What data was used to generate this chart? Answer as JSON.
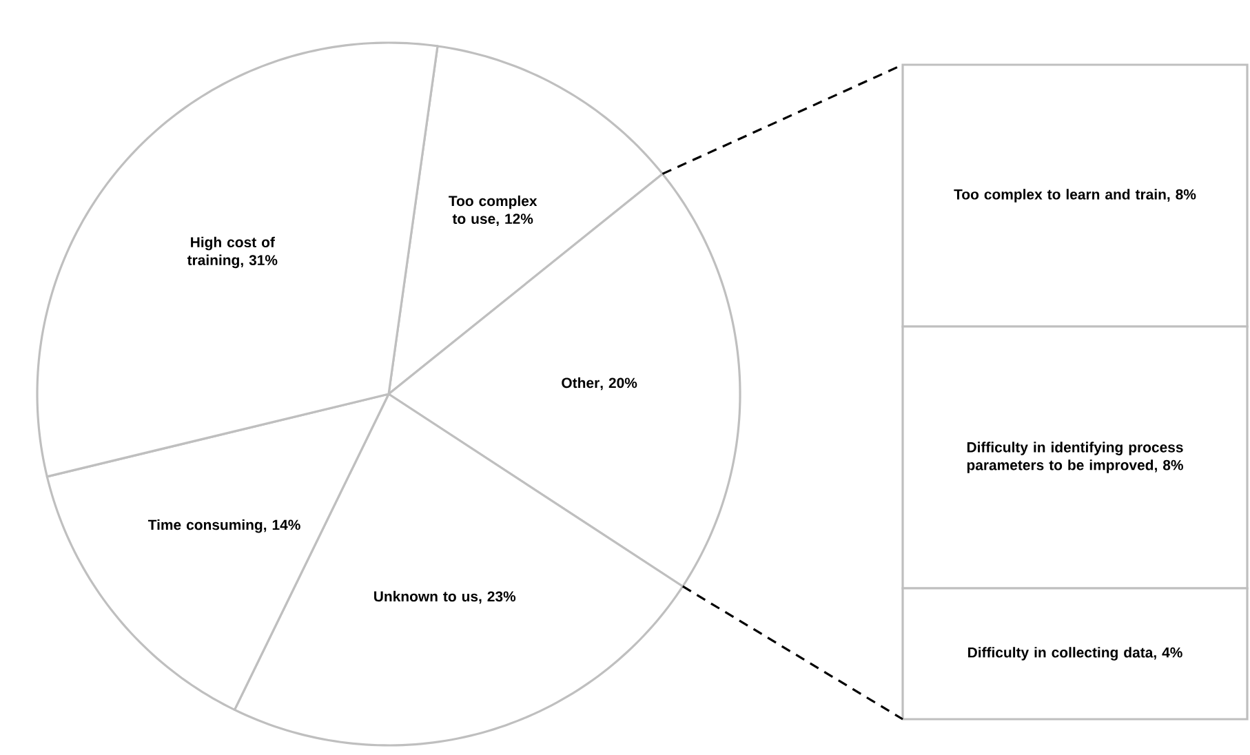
{
  "chart_data": [
    {
      "type": "pie",
      "categories": [
        "Too complex to use",
        "Other",
        "Unknown to us",
        "Time consuming",
        "High cost of training"
      ],
      "values": [
        12,
        20,
        23,
        14,
        31
      ],
      "value_labels": [
        ", 12%",
        ", 20%",
        ", 23%",
        ", 14%",
        ", 31%"
      ],
      "colors": [
        "#ffffff",
        "#ffffff",
        "#ffffff",
        "#ffffff",
        "#ffffff"
      ]
    },
    {
      "type": "bar",
      "stacked": true,
      "categories": [
        null
      ],
      "series": [
        {
          "name": "Difficulty in collecting data",
          "color": "#ffffff",
          "values": [
            4
          ],
          "value_labels": [
            ", 4%"
          ]
        },
        {
          "name": "Difficulty in identifying process parameters to be improved",
          "color": "#ffffff",
          "values": [
            8
          ],
          "value_labels": [
            ", 8%"
          ]
        },
        {
          "name": "Too complex to learn and train",
          "color": "#ffffff",
          "values": [
            8
          ],
          "value_labels": [
            ", 8%"
          ]
        }
      ]
    }
  ]
}
